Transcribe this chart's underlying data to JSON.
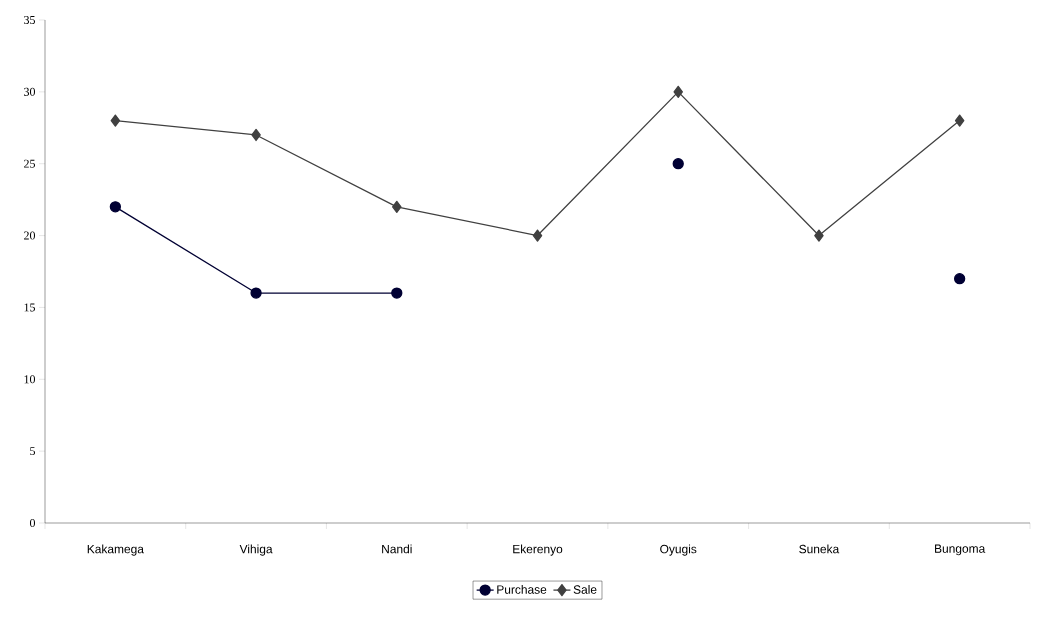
{
  "chart_data": {
    "type": "line",
    "categories": [
      "Kakamega",
      "Vihiga",
      "Nandi",
      "Ekerenyo",
      "Oyugis",
      "Suneka",
      "Bungoma"
    ],
    "series": [
      {
        "name": "Purchase",
        "color": "#000033",
        "marker": "circle",
        "values": [
          22,
          16,
          16,
          null,
          25,
          null,
          17
        ]
      },
      {
        "name": "Sale",
        "color": "#404040",
        "marker": "diamond",
        "values": [
          28,
          27,
          22,
          20,
          30,
          20,
          28
        ]
      }
    ],
    "ylim": [
      0,
      35
    ],
    "yticks": [
      0,
      5,
      10,
      15,
      20,
      25,
      30,
      35
    ],
    "grid": false,
    "legend": "bottom",
    "line_style": "solid"
  }
}
